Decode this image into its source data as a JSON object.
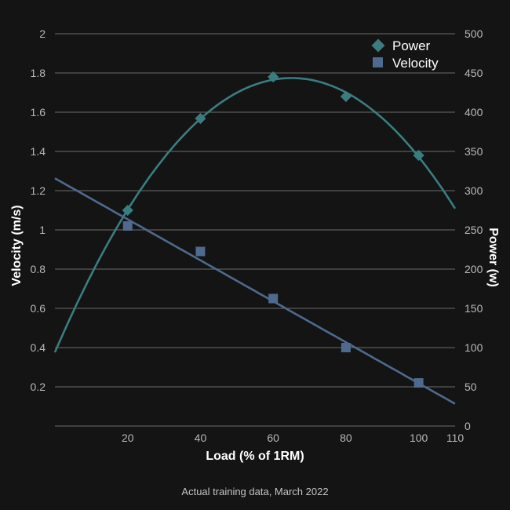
{
  "chart_data": {
    "type": "scatter",
    "x": [
      20,
      40,
      60,
      80,
      100
    ],
    "xlabel": "Load (% of 1RM)",
    "xticks": [
      20,
      40,
      60,
      80,
      100,
      110
    ],
    "xlim": [
      0,
      110
    ],
    "ylabel_left": "Velocity (m/s)",
    "ylim_left": [
      0,
      2
    ],
    "yticks_left": [
      "0.2",
      "0.4",
      "0.6",
      "0.8",
      "1",
      "1.2",
      "1.4",
      "1.6",
      "1.8",
      "2"
    ],
    "ylabel_right": "Power (w)",
    "ylim_right": [
      0,
      500
    ],
    "yticks_right": [
      "0",
      "50",
      "100",
      "150",
      "200",
      "250",
      "300",
      "350",
      "400",
      "450",
      "500"
    ],
    "grid": true,
    "legend_position": "top-right",
    "series": [
      {
        "name": "Power",
        "axis": "right",
        "marker": "diamond",
        "color": "#3a7d80",
        "values": [
          275,
          392,
          445,
          420,
          345
        ],
        "trendline": "quadratic"
      },
      {
        "name": "Velocity",
        "axis": "left",
        "marker": "square",
        "color": "#4e6a8e",
        "values": [
          1.02,
          0.89,
          0.65,
          0.4,
          0.22
        ],
        "trendline": "linear"
      }
    ],
    "caption": "Actual training data, March 2022"
  }
}
